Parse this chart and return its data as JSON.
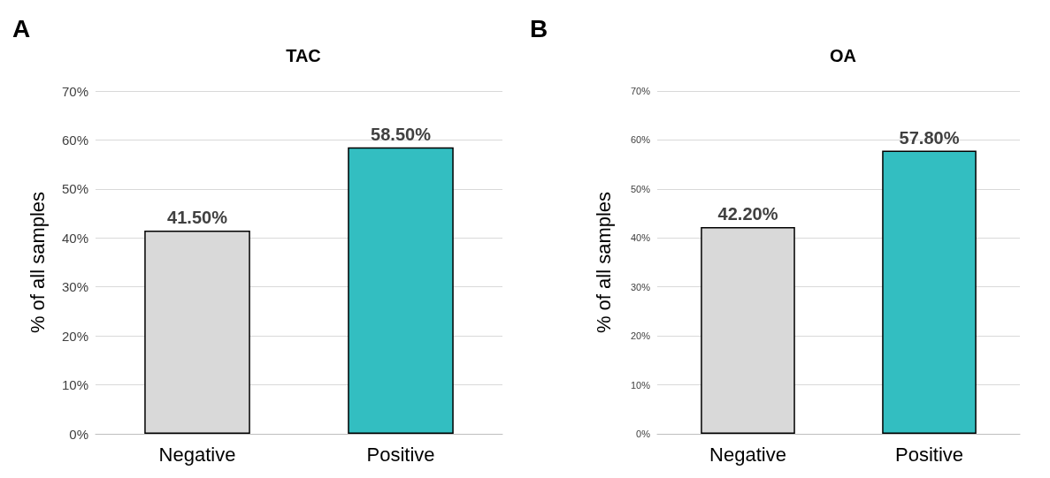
{
  "chart_data": [
    {
      "type": "bar",
      "title": "TAC",
      "ylabel": "% of all samples",
      "annotations": [
        "A"
      ],
      "categories": [
        "Negative",
        "Positive"
      ],
      "values": [
        41.5,
        58.5
      ],
      "colors": [
        "#d9d9d9",
        "#33bec1"
      ],
      "value_labels": [
        "41.50%",
        "58.50%"
      ],
      "ylim": [
        0,
        70
      ],
      "yticks": [
        {
          "value": 0,
          "label": "0%"
        },
        {
          "value": 10,
          "label": "10%"
        },
        {
          "value": 20,
          "label": "20%"
        },
        {
          "value": 30,
          "label": "30%"
        },
        {
          "value": 40,
          "label": "40%"
        },
        {
          "value": 50,
          "label": "50%"
        },
        {
          "value": 60,
          "label": "60%"
        },
        {
          "value": 70,
          "label": "70%"
        }
      ],
      "grid": "y"
    },
    {
      "type": "bar",
      "title": "OA",
      "ylabel": "% of all samples",
      "annotations": [
        "B"
      ],
      "categories": [
        "Negative",
        "Positive"
      ],
      "values": [
        42.2,
        57.8
      ],
      "colors": [
        "#d9d9d9",
        "#33bec1"
      ],
      "value_labels": [
        "42.20%",
        "57.80%"
      ],
      "ylim": [
        0,
        70
      ],
      "yticks": [
        {
          "value": 0,
          "label": "0%"
        },
        {
          "value": 10,
          "label": "10%"
        },
        {
          "value": 20,
          "label": "20%"
        },
        {
          "value": 30,
          "label": "30%"
        },
        {
          "value": 40,
          "label": "40%"
        },
        {
          "value": 50,
          "label": "50%"
        },
        {
          "value": 60,
          "label": "60%"
        },
        {
          "value": 70,
          "label": "70%"
        }
      ],
      "grid": "y"
    }
  ]
}
